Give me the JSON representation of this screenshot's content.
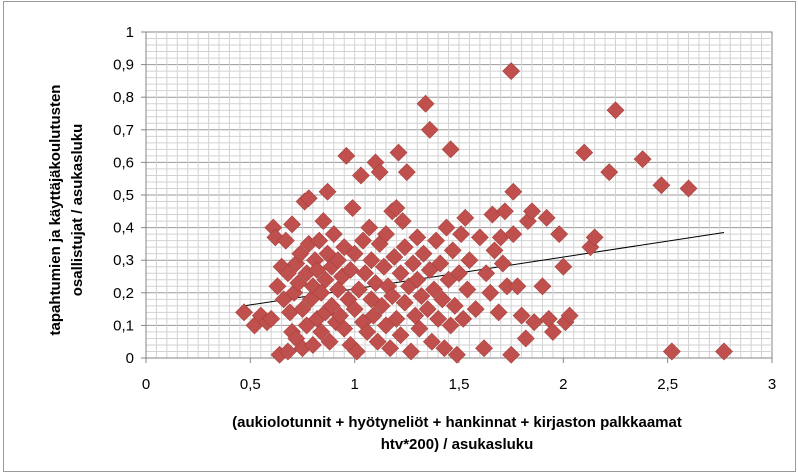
{
  "chart_data": {
    "type": "scatter",
    "title": "",
    "xlabel_lines": [
      "(aukiolotunnit + hyötyneliöt + hankinnat + kirjaston palkkaamat",
      "htv*200) / asukasluku"
    ],
    "ylabel_lines": [
      "tapahtumien ja käyttäjäkoulutusten",
      "osallistujat  / asukasluku"
    ],
    "xlim": [
      0,
      3
    ],
    "ylim": [
      0,
      1
    ],
    "x_ticks": [
      "0",
      "0,5",
      "1",
      "1,5",
      "2",
      "2,5",
      "3"
    ],
    "y_ticks": [
      "0",
      "0,1",
      "0,2",
      "0,3",
      "0,4",
      "0,5",
      "0,6",
      "0,7",
      "0,8",
      "0,9",
      "1"
    ],
    "grid": true,
    "legend": "none",
    "marker_color": "#c0504d",
    "trendline": {
      "x": [
        0.47,
        2.77
      ],
      "y": [
        0.16,
        0.385
      ],
      "color": "#000000"
    },
    "points": [
      [
        0.47,
        0.14
      ],
      [
        0.52,
        0.1
      ],
      [
        0.55,
        0.13
      ],
      [
        0.58,
        0.11
      ],
      [
        0.6,
        0.12
      ],
      [
        0.61,
        0.4
      ],
      [
        0.62,
        0.37
      ],
      [
        0.63,
        0.22
      ],
      [
        0.64,
        0.01
      ],
      [
        0.65,
        0.28
      ],
      [
        0.66,
        0.18
      ],
      [
        0.67,
        0.36
      ],
      [
        0.68,
        0.02
      ],
      [
        0.68,
        0.26
      ],
      [
        0.69,
        0.14
      ],
      [
        0.7,
        0.41
      ],
      [
        0.7,
        0.08
      ],
      [
        0.71,
        0.2
      ],
      [
        0.72,
        0.29
      ],
      [
        0.72,
        0.06
      ],
      [
        0.73,
        0.23
      ],
      [
        0.74,
        0.32
      ],
      [
        0.75,
        0.15
      ],
      [
        0.75,
        0.03
      ],
      [
        0.76,
        0.48
      ],
      [
        0.77,
        0.26
      ],
      [
        0.77,
        0.1
      ],
      [
        0.78,
        0.35
      ],
      [
        0.78,
        0.49
      ],
      [
        0.79,
        0.18
      ],
      [
        0.8,
        0.22
      ],
      [
        0.8,
        0.04
      ],
      [
        0.81,
        0.3
      ],
      [
        0.82,
        0.12
      ],
      [
        0.82,
        0.27
      ],
      [
        0.83,
        0.36
      ],
      [
        0.84,
        0.08
      ],
      [
        0.84,
        0.2
      ],
      [
        0.85,
        0.42
      ],
      [
        0.86,
        0.24
      ],
      [
        0.86,
        0.14
      ],
      [
        0.87,
        0.51
      ],
      [
        0.87,
        0.32
      ],
      [
        0.88,
        0.05
      ],
      [
        0.89,
        0.16
      ],
      [
        0.89,
        0.28
      ],
      [
        0.9,
        0.38
      ],
      [
        0.91,
        0.11
      ],
      [
        0.92,
        0.21
      ],
      [
        0.92,
        0.3
      ],
      [
        0.93,
        0.13
      ],
      [
        0.94,
        0.25
      ],
      [
        0.95,
        0.09
      ],
      [
        0.95,
        0.34
      ],
      [
        0.96,
        0.62
      ],
      [
        0.97,
        0.18
      ],
      [
        0.98,
        0.27
      ],
      [
        0.98,
        0.04
      ],
      [
        0.99,
        0.46
      ],
      [
        1.0,
        0.15
      ],
      [
        1.0,
        0.32
      ],
      [
        1.01,
        0.02
      ],
      [
        1.02,
        0.21
      ],
      [
        1.03,
        0.56
      ],
      [
        1.04,
        0.11
      ],
      [
        1.04,
        0.36
      ],
      [
        1.05,
        0.26
      ],
      [
        1.06,
        0.08
      ],
      [
        1.07,
        0.4
      ],
      [
        1.08,
        0.18
      ],
      [
        1.08,
        0.3
      ],
      [
        1.09,
        0.13
      ],
      [
        1.1,
        0.6
      ],
      [
        1.1,
        0.23
      ],
      [
        1.11,
        0.05
      ],
      [
        1.12,
        0.57
      ],
      [
        1.12,
        0.35
      ],
      [
        1.13,
        0.16
      ],
      [
        1.14,
        0.28
      ],
      [
        1.15,
        0.1
      ],
      [
        1.15,
        0.38
      ],
      [
        1.16,
        0.22
      ],
      [
        1.17,
        0.03
      ],
      [
        1.18,
        0.45
      ],
      [
        1.18,
        0.19
      ],
      [
        1.19,
        0.31
      ],
      [
        1.2,
        0.12
      ],
      [
        1.2,
        0.46
      ],
      [
        1.21,
        0.63
      ],
      [
        1.22,
        0.26
      ],
      [
        1.22,
        0.07
      ],
      [
        1.23,
        0.42
      ],
      [
        1.24,
        0.17
      ],
      [
        1.24,
        0.34
      ],
      [
        1.25,
        0.57
      ],
      [
        1.26,
        0.22
      ],
      [
        1.27,
        0.02
      ],
      [
        1.28,
        0.29
      ],
      [
        1.29,
        0.13
      ],
      [
        1.3,
        0.37
      ],
      [
        1.3,
        0.24
      ],
      [
        1.31,
        0.09
      ],
      [
        1.32,
        0.19
      ],
      [
        1.33,
        0.32
      ],
      [
        1.34,
        0.78
      ],
      [
        1.35,
        0.15
      ],
      [
        1.36,
        0.7
      ],
      [
        1.36,
        0.27
      ],
      [
        1.37,
        0.05
      ],
      [
        1.38,
        0.21
      ],
      [
        1.39,
        0.36
      ],
      [
        1.4,
        0.12
      ],
      [
        1.41,
        0.29
      ],
      [
        1.42,
        0.18
      ],
      [
        1.43,
        0.03
      ],
      [
        1.44,
        0.4
      ],
      [
        1.45,
        0.24
      ],
      [
        1.46,
        0.64
      ],
      [
        1.46,
        0.1
      ],
      [
        1.47,
        0.33
      ],
      [
        1.48,
        0.16
      ],
      [
        1.49,
        0.01
      ],
      [
        1.5,
        0.26
      ],
      [
        1.51,
        0.38
      ],
      [
        1.52,
        0.12
      ],
      [
        1.53,
        0.43
      ],
      [
        1.54,
        0.21
      ],
      [
        1.55,
        0.3
      ],
      [
        1.58,
        0.15
      ],
      [
        1.6,
        0.37
      ],
      [
        1.62,
        0.03
      ],
      [
        1.63,
        0.26
      ],
      [
        1.65,
        0.2
      ],
      [
        1.66,
        0.44
      ],
      [
        1.67,
        0.33
      ],
      [
        1.69,
        0.14
      ],
      [
        1.7,
        0.37
      ],
      [
        1.71,
        0.29
      ],
      [
        1.72,
        0.45
      ],
      [
        1.73,
        0.22
      ],
      [
        1.75,
        0.88
      ],
      [
        1.75,
        0.01
      ],
      [
        1.76,
        0.51
      ],
      [
        1.76,
        0.38
      ],
      [
        1.78,
        0.22
      ],
      [
        1.8,
        0.13
      ],
      [
        1.82,
        0.06
      ],
      [
        1.83,
        0.42
      ],
      [
        1.85,
        0.45
      ],
      [
        1.86,
        0.11
      ],
      [
        1.9,
        0.22
      ],
      [
        1.92,
        0.43
      ],
      [
        1.93,
        0.12
      ],
      [
        1.95,
        0.08
      ],
      [
        1.98,
        0.38
      ],
      [
        2.0,
        0.28
      ],
      [
        2.01,
        0.11
      ],
      [
        2.03,
        0.13
      ],
      [
        2.1,
        0.63
      ],
      [
        2.13,
        0.34
      ],
      [
        2.15,
        0.37
      ],
      [
        2.22,
        0.57
      ],
      [
        2.25,
        0.76
      ],
      [
        2.38,
        0.61
      ],
      [
        2.47,
        0.53
      ],
      [
        2.52,
        0.02
      ],
      [
        2.6,
        0.52
      ],
      [
        2.77,
        0.02
      ]
    ]
  }
}
